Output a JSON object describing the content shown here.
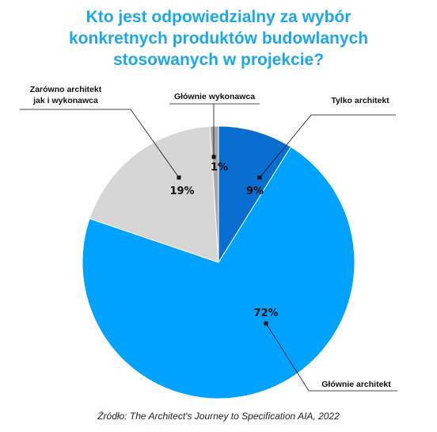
{
  "chart_data": {
    "type": "pie",
    "title_lines": [
      "Kto jest odpowiedzialny za wybór",
      "konkretnych produktów budowlanych",
      "stosowanych w projekcie?"
    ],
    "slices": [
      {
        "label": "Tylko architekt",
        "value": 9,
        "display": "9%",
        "color": "#0a6ed1"
      },
      {
        "label": "Głównie architekt",
        "value": 72,
        "display": "72%",
        "color": "#00a2ff"
      },
      {
        "label_lines": [
          "Zarówno architekt",
          "jak i wykonawca"
        ],
        "value": 19,
        "display": "19%",
        "color": "#d6d6d6"
      },
      {
        "label": "Głównie wykonawca",
        "value": 1,
        "display": "1%",
        "color": "#a8a8a8"
      }
    ],
    "start_angle_deg": 0,
    "direction": "clockwise",
    "source": "Źródło: The Architect's Journey to Specification AIA, 2022"
  }
}
